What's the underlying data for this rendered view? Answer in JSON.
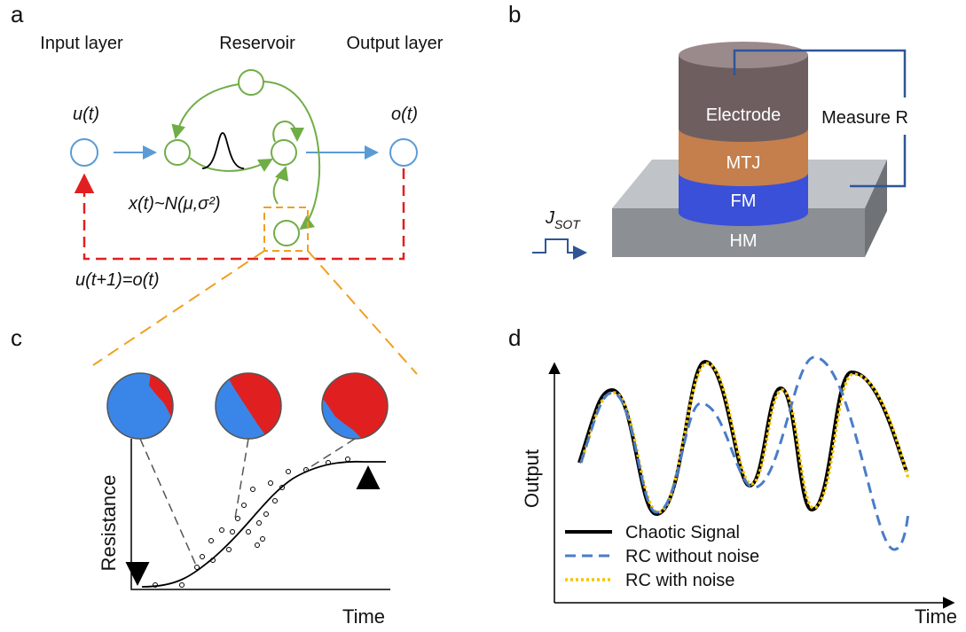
{
  "panels": {
    "a": {
      "label": "a",
      "input_layer": "Input layer",
      "reservoir": "Reservoir",
      "output_layer": "Output layer",
      "input_node": "u(t)",
      "output_node": "o(t)",
      "distribution": "x(t)~N(μ,σ²)",
      "feedback": "u(t+1)=o(t)"
    },
    "b": {
      "label": "b",
      "layers": [
        "Electrode",
        "MTJ",
        "FM",
        "HM"
      ],
      "measure": "Measure R",
      "current": {
        "symbol": "J",
        "subscript": "SOT"
      }
    },
    "c": {
      "label": "c",
      "y_label": "Resistance",
      "x_label": "Time"
    },
    "d": {
      "label": "d",
      "y_label": "Output",
      "x_label": "Time",
      "legend": [
        "Chaotic Signal",
        "RC without noise",
        "RC with noise"
      ]
    }
  }
}
